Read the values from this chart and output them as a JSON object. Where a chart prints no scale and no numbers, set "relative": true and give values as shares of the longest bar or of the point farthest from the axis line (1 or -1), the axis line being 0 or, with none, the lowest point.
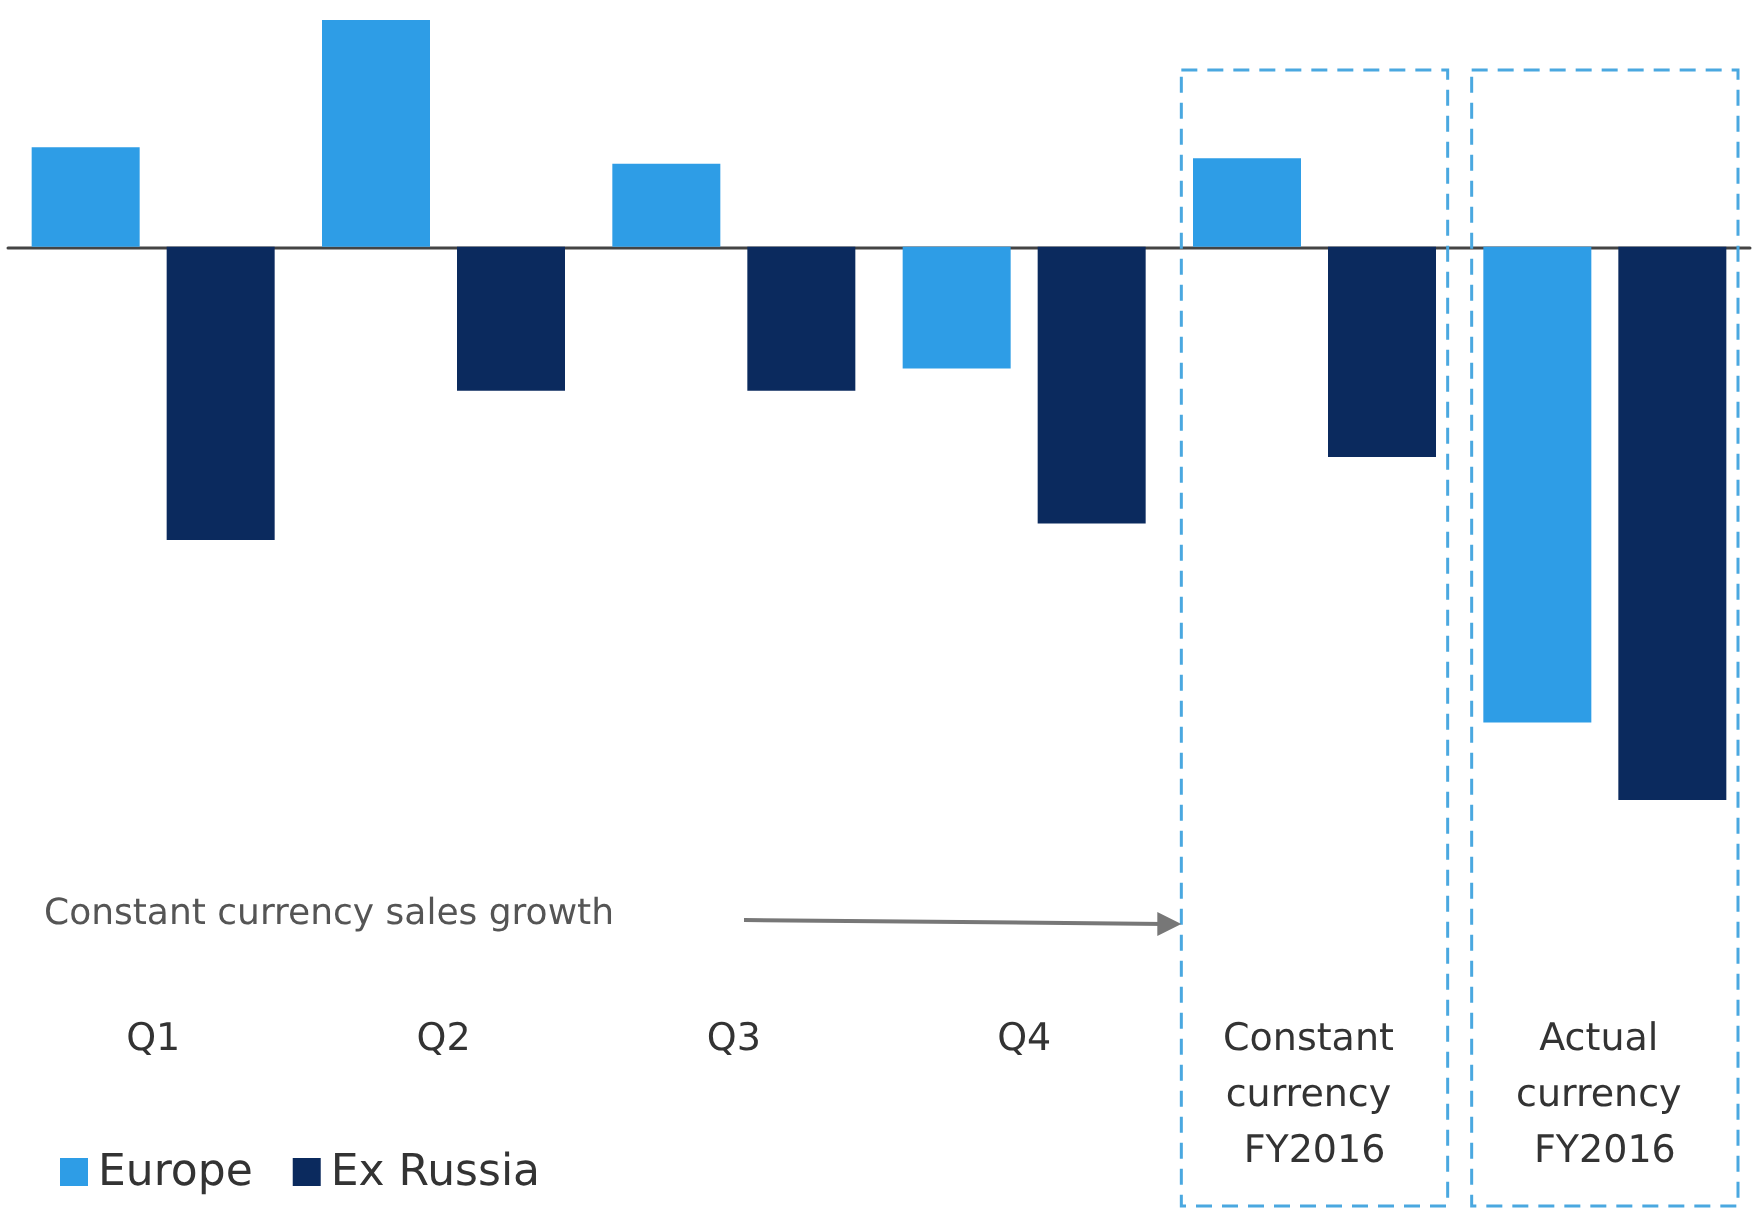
{
  "chart_data": {
    "type": "bar",
    "relative": true,
    "categories": [
      "Q1",
      "Q2",
      "Q3",
      "Q4",
      "Constant currency FY2016",
      "Actual currency FY2016"
    ],
    "series": [
      {
        "name": "Europe",
        "color": "#2e9de6",
        "values": [
          0.18,
          0.41,
          0.15,
          -0.22,
          0.16,
          -0.86
        ]
      },
      {
        "name": "Ex Russia",
        "color": "#0b2a5e",
        "values": [
          -0.53,
          -0.26,
          -0.26,
          -0.5,
          -0.38,
          -1
        ]
      }
    ],
    "annotations": [
      "Constant currency sales growth"
    ],
    "legend": "bottom left",
    "grid": false
  }
}
